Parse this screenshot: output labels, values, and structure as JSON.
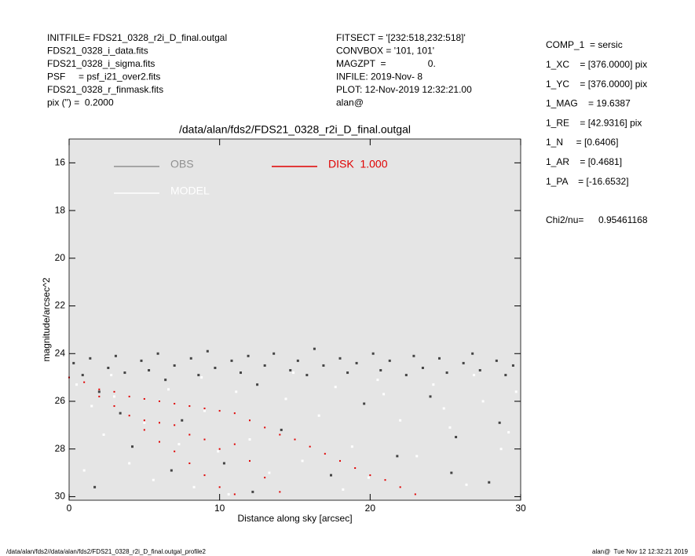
{
  "header": {
    "left": [
      "INITFILE= FDS21_0328_r2i_D_final.outgal",
      "FDS21_0328_i_data.fits",
      "FDS21_0328_i_sigma.fits",
      "PSF     = psf_i21_over2.fits",
      "FDS21_0328_r_finmask.fits",
      "pix (\") =  0.2000"
    ],
    "middle": [
      "FITSECT = '[232:518,232:518]'",
      "CONVBOX = '101, 101'",
      "MAGZPT  =                0.",
      "INFILE: 2019-Nov- 8",
      "PLOT: 12-Nov-2019 12:32:21.00",
      "alan@"
    ]
  },
  "params": [
    "COMP_1  = sersic",
    "1_XC    = [376.0000] pix",
    "1_YC    = [376.0000] pix",
    "1_MAG    = 19.6387",
    "1_RE    = [42.9316] pix",
    "1_N     = [0.6406]",
    "1_AR    = [0.4681]",
    "1_PA    = [-16.6532]"
  ],
  "chi2": {
    "label": "Chi2/nu=",
    "value": "0.95461168"
  },
  "footer": {
    "left": "/data/alan/fds2//data/alan/fds2/FDS21_0328_r2i_D_final.outgal_profile2",
    "right": "alan@  Tue Nov 12 12:32:21 2019"
  },
  "chart_data": {
    "type": "scatter",
    "title": "/data/alan/fds2/FDS21_0328_r2i_D_final.outgal",
    "xlabel": "Distance along sky [arcsec]",
    "ylabel": "magnitude/arcsec^2",
    "xlim": [
      0,
      30
    ],
    "ylim": [
      30.15,
      15
    ],
    "xticks": [
      0,
      10,
      20,
      30
    ],
    "yticks": [
      16,
      18,
      20,
      22,
      24,
      26,
      28,
      30
    ],
    "grid": false,
    "background": "#e5e5e5",
    "series": [
      {
        "name": "OBS",
        "color": "#444444",
        "legend_color": "#909090",
        "x": [
          0.3,
          0.9,
          1.4,
          2.0,
          2.6,
          3.1,
          3.7,
          4.2,
          4.8,
          5.3,
          5.9,
          6.4,
          7.0,
          7.5,
          8.1,
          8.6,
          9.2,
          9.7,
          10.3,
          10.8,
          11.4,
          11.9,
          12.5,
          13.0,
          13.6,
          14.1,
          14.7,
          15.2,
          15.8,
          16.3,
          16.9,
          17.4,
          18.0,
          18.5,
          19.1,
          19.6,
          20.2,
          20.7,
          21.3,
          21.8,
          22.4,
          22.9,
          23.5,
          24.0,
          24.6,
          25.1,
          25.7,
          26.2,
          26.8,
          27.3,
          27.9,
          28.4,
          29.0,
          29.5,
          1.7,
          6.8,
          12.2,
          25.4,
          3.4,
          28.6
        ],
        "y": [
          24.4,
          24.9,
          24.2,
          25.6,
          24.6,
          24.1,
          24.8,
          27.9,
          24.3,
          24.7,
          24.0,
          25.1,
          24.5,
          26.8,
          24.2,
          24.9,
          23.9,
          24.6,
          28.6,
          24.3,
          24.8,
          24.1,
          25.3,
          24.5,
          24.0,
          27.2,
          24.7,
          24.3,
          24.9,
          23.8,
          24.5,
          29.1,
          24.2,
          24.8,
          24.4,
          26.1,
          24.0,
          24.7,
          24.3,
          28.3,
          24.9,
          24.1,
          24.6,
          25.8,
          24.2,
          24.8,
          27.5,
          24.4,
          24.0,
          24.7,
          29.4,
          24.3,
          24.9,
          24.5,
          29.6,
          28.9,
          29.8,
          29.0,
          26.5,
          26.9
        ]
      },
      {
        "name": "MODEL",
        "color": "#ffffff",
        "legend_color": "#ffffff",
        "x": [
          0.5,
          1.5,
          2.3,
          3.0,
          4.0,
          5.0,
          5.6,
          6.6,
          7.3,
          8.3,
          9.0,
          9.9,
          11.1,
          12.0,
          13.3,
          14.4,
          15.5,
          16.6,
          17.7,
          18.8,
          19.9,
          20.9,
          22.0,
          23.1,
          24.2,
          25.3,
          26.4,
          27.5,
          28.7,
          29.7,
          2.8,
          8.8,
          14.9,
          20.5,
          26.9,
          1.0,
          10.6,
          18.2,
          24.9,
          29.2
        ],
        "y": [
          25.3,
          26.2,
          27.4,
          25.8,
          28.6,
          26.9,
          29.3,
          25.5,
          27.8,
          29.6,
          26.4,
          28.1,
          25.6,
          27.6,
          29.0,
          25.9,
          28.5,
          26.6,
          25.4,
          27.9,
          29.2,
          25.7,
          26.8,
          28.3,
          25.3,
          27.1,
          29.5,
          26.0,
          28.0,
          25.6,
          24.9,
          25.0,
          24.8,
          25.1,
          24.9,
          28.9,
          29.9,
          29.7,
          26.3,
          27.3
        ]
      },
      {
        "name": "DISK  1.000",
        "color": "#e00000",
        "legend_color": "#e00000",
        "x": [
          0,
          1,
          2,
          2,
          3,
          3,
          4,
          4,
          5,
          5,
          5,
          6,
          6,
          6,
          7,
          7,
          7,
          8,
          8,
          8,
          9,
          9,
          9,
          10,
          10,
          10,
          11,
          11,
          11,
          12,
          12,
          13,
          13,
          14,
          14,
          15,
          16,
          17,
          18,
          19,
          20,
          21,
          22,
          23
        ],
        "y": [
          25,
          25.2,
          25.5,
          25.8,
          25.6,
          26.2,
          25.8,
          26.6,
          25.9,
          26.8,
          27.2,
          26.0,
          26.9,
          27.7,
          26.1,
          27.0,
          28.1,
          26.2,
          27.4,
          28.6,
          26.3,
          27.6,
          29.1,
          26.4,
          28.0,
          29.6,
          26.5,
          27.8,
          29.9,
          26.8,
          28.5,
          27.1,
          29.2,
          27.4,
          29.8,
          27.6,
          27.9,
          28.2,
          28.5,
          28.8,
          29.1,
          29.3,
          29.6,
          29.9
        ]
      }
    ]
  }
}
